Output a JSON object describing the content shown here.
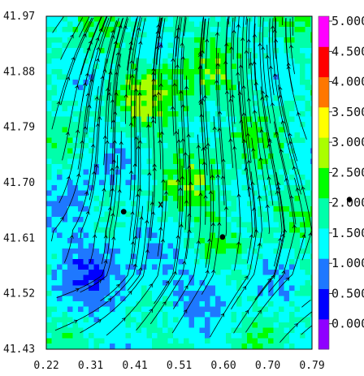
{
  "chart_data": {
    "type": "heatmap",
    "title": "",
    "xlabel": "",
    "ylabel": "",
    "x_ticks": [
      "0.22",
      "0.31",
      "0.41",
      "0.51",
      "0.60",
      "0.70",
      "0.79"
    ],
    "y_ticks": [
      "41.97",
      "41.88",
      "41.79",
      "41.70",
      "41.61",
      "41.52",
      "41.43"
    ],
    "xlim": [
      0.22,
      0.79
    ],
    "ylim": [
      41.43,
      41.97
    ],
    "colorbar": {
      "labels": [
        "0.000",
        "0.500",
        "1.000",
        "1.500",
        "2.000",
        "2.500",
        "3.000",
        "3.500",
        "4.000",
        "4.500",
        "5.000"
      ],
      "colors": [
        "#8f00ff",
        "#0000ff",
        "#1e78ff",
        "#00ffff",
        "#00ffaa",
        "#00ff00",
        "#aaff00",
        "#ffff00",
        "#ff7700",
        "#ff0000",
        "#ff00ff"
      ],
      "range": [
        0,
        5.5
      ]
    },
    "markers": [
      {
        "type": "x",
        "label": "x",
        "x": 0.465,
        "y": 41.665
      },
      {
        "type": "dot",
        "x": 0.386,
        "y": 41.653
      },
      {
        "type": "dot",
        "x": 0.598,
        "y": 41.612
      }
    ],
    "outside_marker": {
      "type": "dot",
      "label": "2.000"
    }
  }
}
